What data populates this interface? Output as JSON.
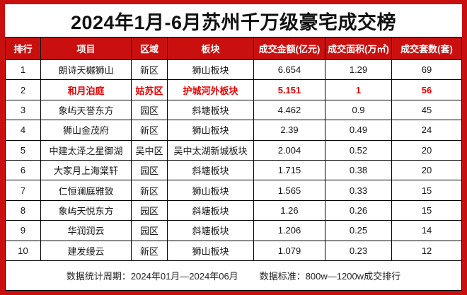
{
  "title": "2024年1月-6月苏州千万级豪宅成交榜",
  "colors": {
    "frame_red": "#c9100f",
    "header_bg": "#c9100f",
    "header_text": "#ffffff",
    "highlight_text_red": "#e60000",
    "grid_line": "#000000",
    "body_text": "#151515"
  },
  "table": {
    "headers": [
      "排行",
      "项目",
      "区域",
      "板块",
      "成交金额(亿元)",
      "成交面积(万㎡)",
      "成交套数(套)"
    ],
    "rows": [
      {
        "rank": "1",
        "project": "朗诗天樾狮山",
        "region": "新区",
        "block": "狮山板块",
        "amount": "6.654",
        "area": "1.29",
        "units": "69",
        "highlight": false
      },
      {
        "rank": "2",
        "project": "和月泊庭",
        "region": "姑苏区",
        "block": "护城河外板块",
        "amount": "5.151",
        "area": "1",
        "units": "56",
        "highlight": true
      },
      {
        "rank": "3",
        "project": "象屿天誉东方",
        "region": "园区",
        "block": "斜塘板块",
        "amount": "4.462",
        "area": "0.9",
        "units": "45",
        "highlight": false
      },
      {
        "rank": "4",
        "project": "狮山金茂府",
        "region": "新区",
        "block": "狮山板块",
        "amount": "2.39",
        "area": "0.49",
        "units": "24",
        "highlight": false
      },
      {
        "rank": "5",
        "project": "中建太泽之星御湖",
        "region": "吴中区",
        "block": "吴中太湖新城板块",
        "amount": "2.004",
        "area": "0.52",
        "units": "20",
        "highlight": false
      },
      {
        "rank": "6",
        "project": "大家月上海棠轩",
        "region": "园区",
        "block": "斜塘板块",
        "amount": "1.715",
        "area": "0.38",
        "units": "20",
        "highlight": false
      },
      {
        "rank": "7",
        "project": "仁恒澜庭雅致",
        "region": "新区",
        "block": "狮山板块",
        "amount": "1.565",
        "area": "0.33",
        "units": "15",
        "highlight": false
      },
      {
        "rank": "8",
        "project": "象屿天悦东方",
        "region": "园区",
        "block": "斜塘板块",
        "amount": "1.26",
        "area": "0.26",
        "units": "15",
        "highlight": false
      },
      {
        "rank": "9",
        "project": "华润润云",
        "region": "园区",
        "block": "斜塘板块",
        "amount": "1.206",
        "area": "0.25",
        "units": "14",
        "highlight": false
      },
      {
        "rank": "10",
        "project": "建发缦云",
        "region": "新区",
        "block": "狮山板块",
        "amount": "1.079",
        "area": "0.23",
        "units": "12",
        "highlight": false
      }
    ]
  },
  "footer": {
    "period": "数据统计周期：2024年01月—2024年06月",
    "standard": "数据标准：800w—1200w成交排行"
  },
  "chart_data": {
    "type": "table",
    "title": "2024年1月-6月苏州千万级豪宅成交榜",
    "columns": [
      "排行",
      "项目",
      "区域",
      "板块",
      "成交金额(亿元)",
      "成交面积(万㎡)",
      "成交套数(套)"
    ],
    "rows": [
      [
        1,
        "朗诗天樾狮山",
        "新区",
        "狮山板块",
        6.654,
        1.29,
        69
      ],
      [
        2,
        "和月泊庭",
        "姑苏区",
        "护城河外板块",
        5.151,
        1,
        56
      ],
      [
        3,
        "象屿天誉东方",
        "园区",
        "斜塘板块",
        4.462,
        0.9,
        45
      ],
      [
        4,
        "狮山金茂府",
        "新区",
        "狮山板块",
        2.39,
        0.49,
        24
      ],
      [
        5,
        "中建太泽之星御湖",
        "吴中区",
        "吴中太湖新城板块",
        2.004,
        0.52,
        20
      ],
      [
        6,
        "大家月上海棠轩",
        "园区",
        "斜塘板块",
        1.715,
        0.38,
        20
      ],
      [
        7,
        "仁恒澜庭雅致",
        "新区",
        "狮山板块",
        1.565,
        0.33,
        15
      ],
      [
        8,
        "象屿天悦东方",
        "园区",
        "斜塘板块",
        1.26,
        0.26,
        15
      ],
      [
        9,
        "华润润云",
        "园区",
        "斜塘板块",
        1.206,
        0.25,
        14
      ],
      [
        10,
        "建发缦云",
        "新区",
        "狮山板块",
        1.079,
        0.23,
        12
      ]
    ],
    "highlighted_row_rank": 2,
    "notes": "数据统计周期：2024年01月—2024年06月 数据标准：800w—1200w成交排行"
  }
}
